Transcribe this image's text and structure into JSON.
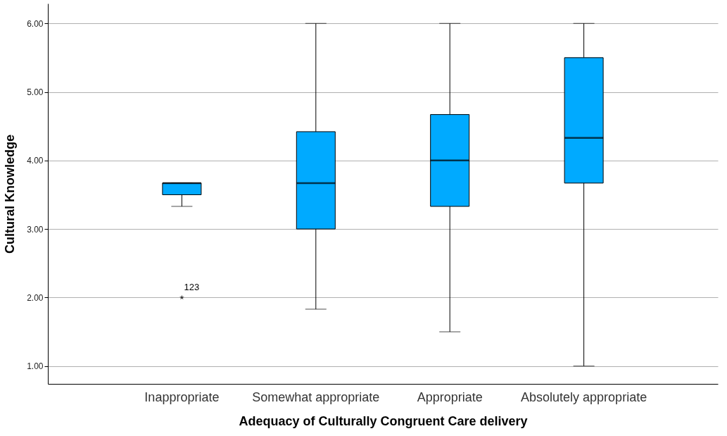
{
  "chart_data": {
    "type": "box",
    "xlabel": "Adequacy of Culturally Congruent Care delivery",
    "ylabel": "Cultural Knowledge",
    "categories": [
      "Inappropriate",
      "Somewhat appropriate",
      "Appropriate",
      "Absolutely appropriate"
    ],
    "boxes": [
      {
        "low": 3.33,
        "q1": 3.5,
        "median": 3.67,
        "q3": 3.67,
        "high": 3.67,
        "outliers": [
          2.0
        ]
      },
      {
        "low": 1.83,
        "q1": 3.0,
        "median": 3.67,
        "q3": 4.42,
        "high": 6.0
      },
      {
        "low": 1.5,
        "q1": 3.33,
        "median": 4.0,
        "q3": 4.67,
        "high": 6.0
      },
      {
        "low": 1.0,
        "q1": 3.67,
        "median": 4.33,
        "q3": 5.5,
        "high": 6.0
      }
    ],
    "color": "#00aaff",
    "marker": "star",
    "ylim": [
      0.74,
      6.29
    ],
    "yticks": [
      {
        "value": 1,
        "label": "1.00"
      },
      {
        "value": 2,
        "label": "2.00"
      },
      {
        "value": 3,
        "label": "3.00"
      },
      {
        "value": 4,
        "label": "4.00"
      },
      {
        "value": 5,
        "label": "5.00"
      },
      {
        "value": 6,
        "label": "6.00"
      }
    ],
    "grid": "y",
    "annotations": [
      "123"
    ]
  }
}
